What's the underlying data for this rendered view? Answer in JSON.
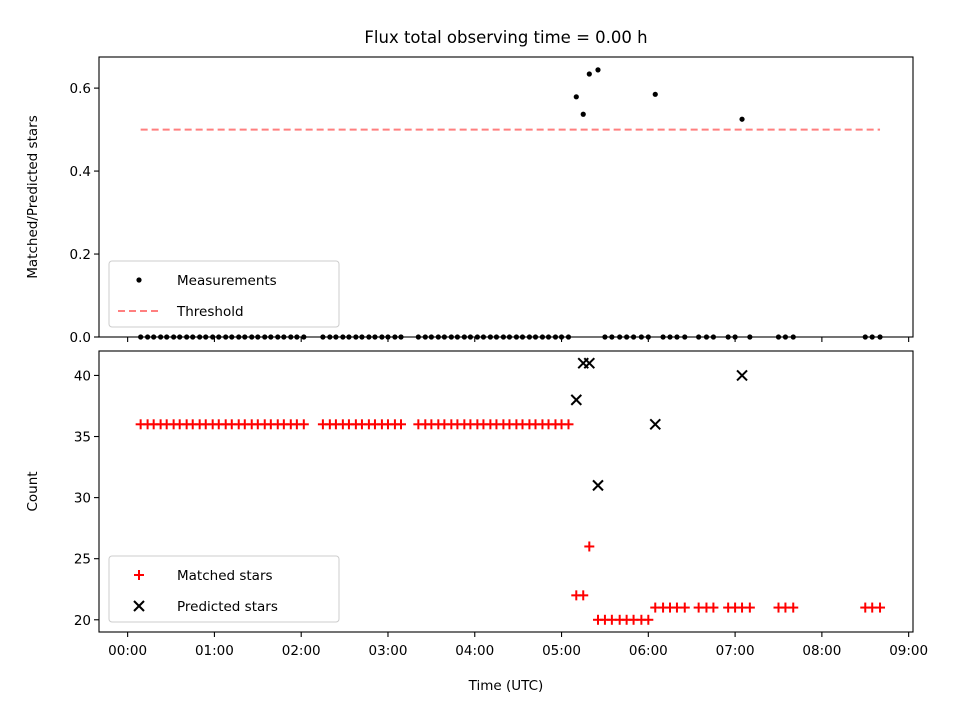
{
  "figure": {
    "title": "Flux total observing time = 0.00 h"
  },
  "chart_data": [
    {
      "type": "scatter",
      "ylabel": "Matched/Predicted stars",
      "xlabel": "",
      "xlim": [
        -0.33,
        9.05
      ],
      "ylim": [
        0.0,
        0.675
      ],
      "x_ticks": [
        0,
        1,
        2,
        3,
        4,
        5,
        6,
        7,
        8,
        9
      ],
      "x_ticks_labeled": false,
      "y_ticks": [
        0.0,
        0.2,
        0.4,
        0.6
      ],
      "y_tick_labels": [
        "0.0",
        "0.2",
        "0.4",
        "0.6"
      ],
      "legend": {
        "placement": "lower-left",
        "entries": [
          "Measurements",
          "Threshold"
        ]
      },
      "series": [
        {
          "name": "Measurements",
          "marker": "dot",
          "color": "#000000",
          "x": [
            0.15,
            0.23,
            0.3,
            0.38,
            0.45,
            0.53,
            0.6,
            0.68,
            0.75,
            0.83,
            0.9,
            0.98,
            1.05,
            1.13,
            1.2,
            1.28,
            1.35,
            1.43,
            1.5,
            1.58,
            1.65,
            1.73,
            1.8,
            1.88,
            1.95,
            2.03,
            2.25,
            2.33,
            2.4,
            2.48,
            2.55,
            2.63,
            2.7,
            2.78,
            2.85,
            2.93,
            3.0,
            3.08,
            3.15,
            3.35,
            3.43,
            3.5,
            3.58,
            3.65,
            3.73,
            3.8,
            3.88,
            3.95,
            4.03,
            4.1,
            4.18,
            4.25,
            4.33,
            4.4,
            4.48,
            4.55,
            4.63,
            4.7,
            4.78,
            4.85,
            4.93,
            5.0,
            5.08,
            5.17,
            5.25,
            5.32,
            5.42,
            5.5,
            5.58,
            5.67,
            5.75,
            5.83,
            5.92,
            6.0,
            6.08,
            6.17,
            6.25,
            6.33,
            6.42,
            6.58,
            6.67,
            6.75,
            6.92,
            7.0,
            7.08,
            7.17,
            7.5,
            7.58,
            7.67,
            8.5,
            8.58,
            8.67
          ],
          "y": [
            0,
            0,
            0,
            0,
            0,
            0,
            0,
            0,
            0,
            0,
            0,
            0,
            0,
            0,
            0,
            0,
            0,
            0,
            0,
            0,
            0,
            0,
            0,
            0,
            0,
            0,
            0,
            0,
            0,
            0,
            0,
            0,
            0,
            0,
            0,
            0,
            0,
            0,
            0,
            0,
            0,
            0,
            0,
            0,
            0,
            0,
            0,
            0,
            0,
            0,
            0,
            0,
            0,
            0,
            0,
            0,
            0,
            0,
            0,
            0,
            0,
            0,
            0,
            0.579,
            0.537,
            0.634,
            0.644,
            0,
            0,
            0,
            0,
            0,
            0,
            0,
            0.585,
            0,
            0,
            0,
            0,
            0,
            0,
            0,
            0,
            0,
            0.525,
            0,
            0,
            0,
            0,
            0,
            0,
            0
          ]
        },
        {
          "name": "Threshold",
          "style": "dashed-line",
          "color": "#ff7f7f",
          "x": [
            0.15,
            8.67
          ],
          "y": [
            0.5,
            0.5
          ]
        }
      ]
    },
    {
      "type": "scatter",
      "ylabel": "Count",
      "xlabel": "Time (UTC)",
      "xlim": [
        -0.33,
        9.05
      ],
      "ylim": [
        19.0,
        42.0
      ],
      "x_ticks": [
        0,
        1,
        2,
        3,
        4,
        5,
        6,
        7,
        8,
        9
      ],
      "x_tick_labels": [
        "00:00",
        "01:00",
        "02:00",
        "03:00",
        "04:00",
        "05:00",
        "06:00",
        "07:00",
        "08:00",
        "09:00"
      ],
      "y_ticks": [
        20,
        25,
        30,
        35,
        40
      ],
      "y_tick_labels": [
        "20",
        "25",
        "30",
        "35",
        "40"
      ],
      "legend": {
        "placement": "lower-left",
        "entries": [
          "Matched stars",
          "Predicted stars"
        ]
      },
      "series": [
        {
          "name": "Matched stars",
          "marker": "plus",
          "color": "#ff0000",
          "x": [
            0.15,
            0.23,
            0.3,
            0.38,
            0.45,
            0.53,
            0.6,
            0.68,
            0.75,
            0.83,
            0.9,
            0.98,
            1.05,
            1.13,
            1.2,
            1.28,
            1.35,
            1.43,
            1.5,
            1.58,
            1.65,
            1.73,
            1.8,
            1.88,
            1.95,
            2.03,
            2.25,
            2.33,
            2.4,
            2.48,
            2.55,
            2.63,
            2.7,
            2.78,
            2.85,
            2.93,
            3.0,
            3.08,
            3.15,
            3.35,
            3.43,
            3.5,
            3.58,
            3.65,
            3.73,
            3.8,
            3.88,
            3.95,
            4.03,
            4.1,
            4.18,
            4.25,
            4.33,
            4.4,
            4.48,
            4.55,
            4.63,
            4.7,
            4.78,
            4.85,
            4.93,
            5.0,
            5.08,
            5.17,
            5.25,
            5.32,
            5.42,
            5.5,
            5.58,
            5.67,
            5.75,
            5.83,
            5.92,
            6.0,
            6.08,
            6.17,
            6.25,
            6.33,
            6.42,
            6.58,
            6.67,
            6.75,
            6.92,
            7.0,
            7.08,
            7.17,
            7.5,
            7.58,
            7.67,
            8.5,
            8.58,
            8.67
          ],
          "y": [
            36,
            36,
            36,
            36,
            36,
            36,
            36,
            36,
            36,
            36,
            36,
            36,
            36,
            36,
            36,
            36,
            36,
            36,
            36,
            36,
            36,
            36,
            36,
            36,
            36,
            36,
            36,
            36,
            36,
            36,
            36,
            36,
            36,
            36,
            36,
            36,
            36,
            36,
            36,
            36,
            36,
            36,
            36,
            36,
            36,
            36,
            36,
            36,
            36,
            36,
            36,
            36,
            36,
            36,
            36,
            36,
            36,
            36,
            36,
            36,
            36,
            36,
            36,
            22,
            22,
            26,
            20,
            20,
            20,
            20,
            20,
            20,
            20,
            20,
            21,
            21,
            21,
            21,
            21,
            21,
            21,
            21,
            21,
            21,
            21,
            21,
            21,
            21,
            21,
            21,
            21,
            21
          ]
        },
        {
          "name": "Predicted stars",
          "marker": "x",
          "color": "#000000",
          "x": [
            5.17,
            5.25,
            5.32,
            5.42,
            6.08,
            7.08
          ],
          "y": [
            38,
            41,
            41,
            31,
            36,
            40
          ]
        }
      ]
    }
  ]
}
